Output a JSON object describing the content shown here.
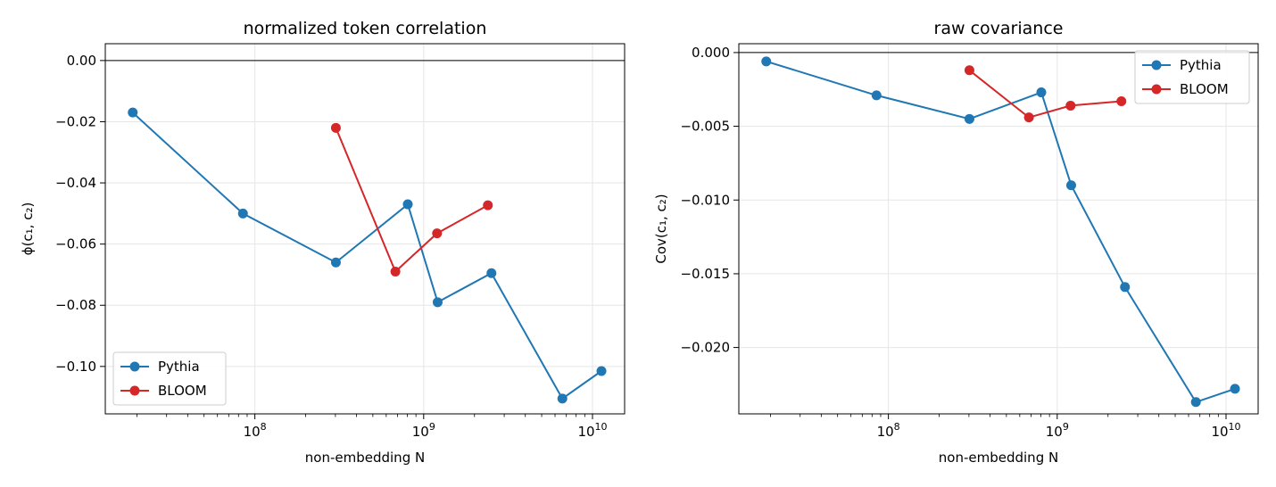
{
  "chart_data": [
    {
      "type": "line",
      "title": "normalized token correlation",
      "xlabel": "non-embedding N",
      "ylabel": "ϕ(c₁, c₂)",
      "xscale": "log",
      "xlim": [
        13000000,
        15500000000
      ],
      "ylim": [
        -0.1155,
        0.0055
      ],
      "xticks": [
        {
          "value": 100000000,
          "base": "10",
          "exp": "8"
        },
        {
          "value": 1000000000,
          "base": "10",
          "exp": "9"
        },
        {
          "value": 10000000000,
          "base": "10",
          "exp": "10"
        }
      ],
      "yticks": [
        {
          "value": 0.0,
          "label": "0.00"
        },
        {
          "value": -0.02,
          "label": "−0.02"
        },
        {
          "value": -0.04,
          "label": "−0.04"
        },
        {
          "value": -0.06,
          "label": "−0.06"
        },
        {
          "value": -0.08,
          "label": "−0.08"
        },
        {
          "value": -0.1,
          "label": "−0.10"
        }
      ],
      "reference_line": 0.0,
      "grid": true,
      "legend_position": "lower-left",
      "series": [
        {
          "name": "Pythia",
          "color": "#1f77b4",
          "x": [
            18900000,
            85000000,
            302000000,
            805000000,
            1210000000,
            2520000000,
            6630000000,
            11300000000
          ],
          "y": [
            -0.017,
            -0.05,
            -0.066,
            -0.047,
            -0.079,
            -0.0695,
            -0.1105,
            -0.1015
          ]
        },
        {
          "name": "BLOOM",
          "color": "#d62728",
          "x": [
            302000000,
            680000000,
            1200000000,
            2400000000
          ],
          "y": [
            -0.022,
            -0.069,
            -0.0565,
            -0.0473
          ]
        }
      ]
    },
    {
      "type": "line",
      "title": "raw covariance",
      "xlabel": "non-embedding N",
      "ylabel": "Cov(c₁, c₂)",
      "xscale": "log",
      "xlim": [
        13000000,
        15500000000
      ],
      "ylim": [
        -0.0245,
        0.0006
      ],
      "xticks": [
        {
          "value": 100000000,
          "base": "10",
          "exp": "8"
        },
        {
          "value": 1000000000,
          "base": "10",
          "exp": "9"
        },
        {
          "value": 10000000000,
          "base": "10",
          "exp": "10"
        }
      ],
      "yticks": [
        {
          "value": 0.0,
          "label": "0.000"
        },
        {
          "value": -0.005,
          "label": "−0.005"
        },
        {
          "value": -0.01,
          "label": "−0.010"
        },
        {
          "value": -0.015,
          "label": "−0.015"
        },
        {
          "value": -0.02,
          "label": "−0.020"
        }
      ],
      "reference_line": 0.0,
      "grid": true,
      "legend_position": "top-right",
      "series": [
        {
          "name": "Pythia",
          "color": "#1f77b4",
          "x": [
            18900000,
            85000000,
            302000000,
            805000000,
            1210000000,
            2520000000,
            6630000000,
            11300000000
          ],
          "y": [
            -0.0006,
            -0.0029,
            -0.0045,
            -0.0027,
            -0.009,
            -0.0159,
            -0.0237,
            -0.0228
          ]
        },
        {
          "name": "BLOOM",
          "color": "#d62728",
          "x": [
            302000000,
            680000000,
            1200000000,
            2400000000
          ],
          "y": [
            -0.0012,
            -0.0044,
            -0.0036,
            -0.0033
          ]
        }
      ]
    }
  ]
}
